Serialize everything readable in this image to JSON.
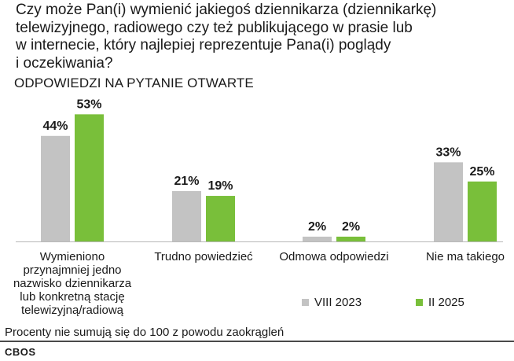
{
  "chart_data": {
    "type": "bar",
    "title_lines": [
      "Czy może Pan(i) wymienić jakiegoś dziennikarza (dziennikarkę)",
      "telewizyjnego, radiowego czy też publikującego w prasie lub",
      "w internecie, który najlepiej reprezentuje Pana(i) poglądy",
      "i oczekiwania?"
    ],
    "subtitle": "ODPOWIEDZI NA PYTANIE OTWARTE",
    "categories": [
      [
        "Wymieniono",
        "przynajmniej jedno",
        "nazwisko dziennikarza",
        "lub konkretną stację",
        "telewizyjną/radiową"
      ],
      [
        "Trudno powiedzieć"
      ],
      [
        "Odmowa odpowiedzi"
      ],
      [
        "Nie ma takiego"
      ]
    ],
    "series": [
      {
        "name": "VIII 2023",
        "color": "#c3c3c3",
        "values": [
          44,
          21,
          2,
          33
        ],
        "labels": [
          "44%",
          "21%",
          "2%",
          "33%"
        ]
      },
      {
        "name": "II 2025",
        "color": "#79bf3a",
        "values": [
          53,
          19,
          2,
          25
        ],
        "labels": [
          "53%",
          "19%",
          "2%",
          "25%"
        ]
      }
    ],
    "ylim": [
      0,
      100
    ],
    "unit": "%",
    "xlabel": "",
    "ylabel": ""
  },
  "footnote": "Procenty nie sumują się do 100 z powodu zaokrągleń",
  "source": "CBOS"
}
